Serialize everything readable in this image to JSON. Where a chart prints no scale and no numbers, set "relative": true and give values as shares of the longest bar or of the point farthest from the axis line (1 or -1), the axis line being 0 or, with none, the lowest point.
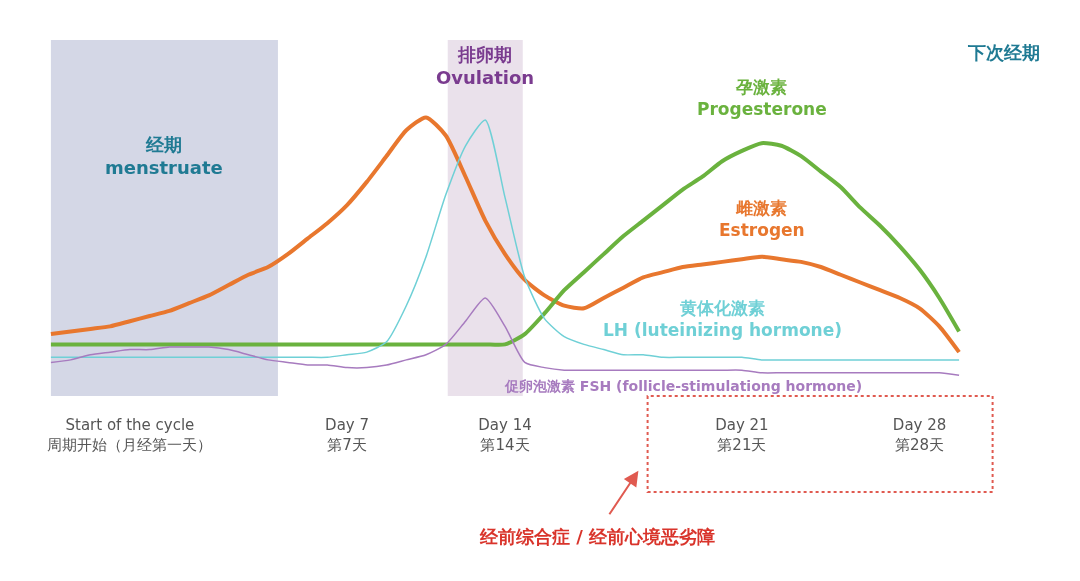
{
  "chart_data": {
    "type": "line",
    "relative": true,
    "legend": false,
    "grid": false,
    "marker": "none",
    "line_style": "solid",
    "tick_labels": "x",
    "categories": [
      null,
      null,
      null,
      null,
      "Start of the cycle\n周期开始（月经第一天）",
      null,
      null,
      null,
      null,
      null,
      null,
      null,
      null,
      null,
      null,
      "Day 7\n第7天",
      null,
      null,
      null,
      null,
      null,
      null,
      null,
      "Day 14\n第14天",
      null,
      null,
      null,
      null,
      null,
      null,
      null,
      null,
      null,
      null,
      null,
      "Day 21\n第21天",
      null,
      null,
      null,
      null,
      null,
      null,
      null,
      null,
      "Day 28\n第28天",
      null,
      null
    ],
    "series": [
      {
        "name": "雌激素\nEstrogen",
        "color": "#e8772e",
        "values": [
          0.16,
          0.17,
          0.18,
          0.19,
          0.21,
          0.23,
          0.25,
          0.28,
          0.31,
          0.35,
          0.39,
          0.42,
          0.47,
          0.53,
          0.59,
          0.66,
          0.75,
          0.85,
          0.95,
          1.0,
          0.93,
          0.77,
          0.6,
          0.47,
          0.37,
          0.31,
          0.27,
          0.26,
          0.3,
          0.34,
          0.38,
          0.4,
          0.42,
          0.43,
          0.44,
          0.45,
          0.46,
          0.45,
          0.44,
          0.42,
          0.39,
          0.36,
          0.33,
          0.3,
          0.26,
          0.19,
          0.09
        ]
      },
      {
        "name": "孕激素\nProgesterone",
        "color": "#6ab23e",
        "values": [
          0.12,
          0.12,
          0.12,
          0.12,
          0.12,
          0.12,
          0.12,
          0.12,
          0.12,
          0.12,
          0.12,
          0.12,
          0.12,
          0.12,
          0.12,
          0.12,
          0.12,
          0.12,
          0.12,
          0.12,
          0.12,
          0.12,
          0.12,
          0.12,
          0.16,
          0.24,
          0.33,
          0.4,
          0.47,
          0.54,
          0.6,
          0.66,
          0.72,
          0.77,
          0.83,
          0.87,
          0.9,
          0.89,
          0.85,
          0.79,
          0.73,
          0.65,
          0.58,
          0.5,
          0.41,
          0.3,
          0.17
        ]
      },
      {
        "name": "黄体化激素\nLH (luteinizing hormone)",
        "color": "#6fd0d6",
        "values": [
          0.07,
          0.07,
          0.07,
          0.07,
          0.07,
          0.07,
          0.07,
          0.07,
          0.07,
          0.07,
          0.07,
          0.07,
          0.07,
          0.07,
          0.07,
          0.08,
          0.09,
          0.13,
          0.27,
          0.46,
          0.7,
          0.89,
          0.99,
          0.69,
          0.38,
          0.22,
          0.15,
          0.12,
          0.1,
          0.08,
          0.08,
          0.07,
          0.07,
          0.07,
          0.07,
          0.07,
          0.06,
          0.06,
          0.06,
          0.06,
          0.06,
          0.06,
          0.06,
          0.06,
          0.06,
          0.06,
          0.06
        ]
      },
      {
        "name": "促卵泡激素 FSH (follicle-stimulationg hormone)",
        "color": "#a77bbf",
        "values": [
          0.05,
          0.06,
          0.08,
          0.09,
          0.1,
          0.1,
          0.11,
          0.11,
          0.11,
          0.1,
          0.08,
          0.06,
          0.05,
          0.04,
          0.04,
          0.03,
          0.03,
          0.04,
          0.06,
          0.08,
          0.12,
          0.21,
          0.3,
          0.19,
          0.05,
          0.03,
          0.02,
          0.02,
          0.02,
          0.02,
          0.02,
          0.02,
          0.02,
          0.02,
          0.02,
          0.02,
          0.01,
          0.01,
          0.01,
          0.01,
          0.01,
          0.01,
          0.01,
          0.01,
          0.01,
          0.01,
          0
        ]
      }
    ],
    "annotations": [
      "下次经期",
      "经前综合症 / 经前心境恶劣障",
      "经期\nmenstruate",
      "排卵期\nOvulation"
    ]
  }
}
